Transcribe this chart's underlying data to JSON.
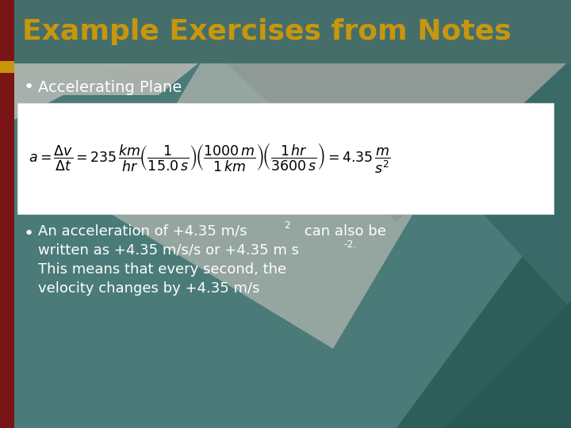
{
  "title": "Example Exercises from Notes",
  "title_color": "#C8960C",
  "title_fontsize": 26,
  "bg_teal": "#4A7B78",
  "bg_gray": "#A8AFAA",
  "white_box_color": "#FFFFFF",
  "bullet1_text": "Accelerating Plane",
  "bullet2_line1": "An acceleration of +4.35 m/s",
  "bullet2_sup1": "2",
  "bullet2_after_sup1": " can also be",
  "bullet2_line2": "written as +4.35 m/s/s or +4.35 m s",
  "bullet2_sup2": "-2",
  "bullet2_after_sup2": ".",
  "bullet2_line3": "This means that every second, the",
  "bullet2_line4": "velocity changes by +4.35 m/s",
  "text_color": "#FFFFFF",
  "left_bar_color": "#7A1515",
  "left_accent_color": "#C8960C",
  "teal_dark": "#3A6B68",
  "teal_mid": "#2E5E5A",
  "gray_shape": "#909A95",
  "gray_light": "#B0BAB5"
}
